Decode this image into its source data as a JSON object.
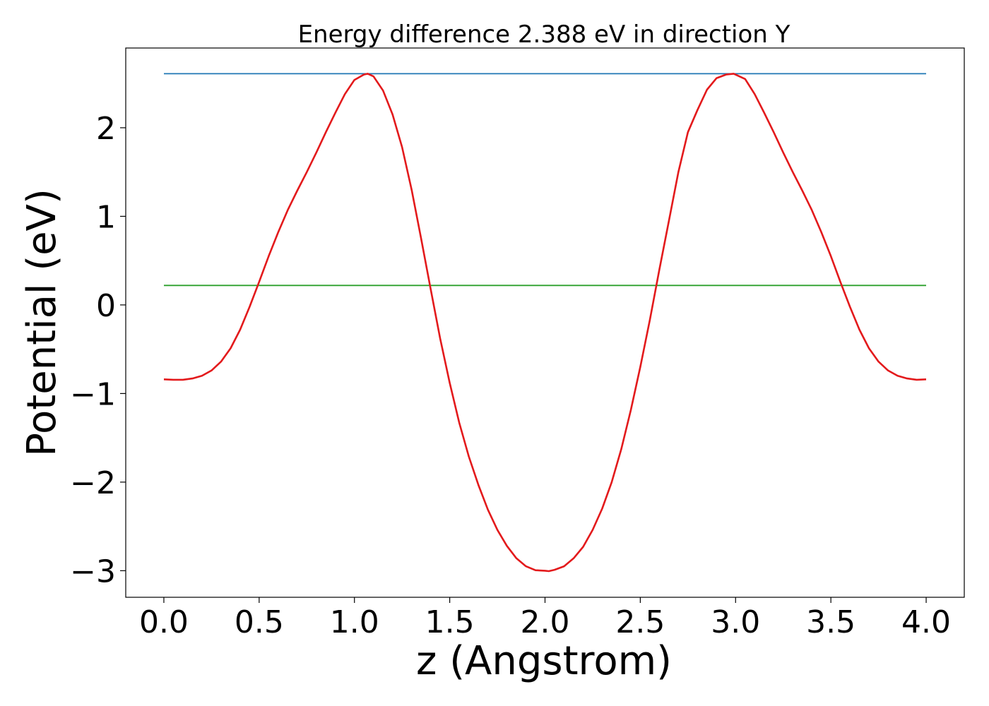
{
  "chart_data": {
    "type": "line",
    "title": "Energy difference 2.388 eV in direction Y",
    "xlabel": "z (Angstrom)",
    "ylabel": "Potential (eV)",
    "xlim": [
      -0.2,
      4.2
    ],
    "ylim": [
      -3.3,
      2.9
    ],
    "xticks": [
      0.0,
      0.5,
      1.0,
      1.5,
      2.0,
      2.5,
      3.0,
      3.5,
      4.0
    ],
    "xtick_labels": [
      "0.0",
      "0.5",
      "1.0",
      "1.5",
      "2.0",
      "2.5",
      "3.0",
      "3.5",
      "4.0"
    ],
    "yticks": [
      2,
      1,
      0,
      -1,
      -2,
      -3
    ],
    "ytick_labels": [
      "2",
      "1",
      "0",
      "−1",
      "−2",
      "−3"
    ],
    "grid": false,
    "series": [
      {
        "color": "#1f77b4",
        "x": [
          0.0,
          4.0
        ],
        "y": [
          2.61,
          2.61
        ]
      },
      {
        "color": "#2ca02c",
        "x": [
          0.0,
          4.0
        ],
        "y": [
          0.22,
          0.22
        ]
      },
      {
        "color": "#e31a1c",
        "x": [
          0.0,
          0.05,
          0.1,
          0.15,
          0.2,
          0.25,
          0.3,
          0.35,
          0.4,
          0.45,
          0.5,
          0.55,
          0.6,
          0.65,
          0.7,
          0.75,
          0.8,
          0.85,
          0.9,
          0.95,
          1.0,
          1.05,
          1.07,
          1.1,
          1.15,
          1.2,
          1.25,
          1.3,
          1.35,
          1.4,
          1.45,
          1.5,
          1.55,
          1.6,
          1.65,
          1.7,
          1.75,
          1.8,
          1.85,
          1.9,
          1.95,
          2.0,
          2.02,
          2.05,
          2.1,
          2.15,
          2.2,
          2.25,
          2.3,
          2.35,
          2.4,
          2.45,
          2.5,
          2.55,
          2.6,
          2.65,
          2.7,
          2.75,
          2.8,
          2.85,
          2.9,
          2.95,
          2.99,
          3.02,
          3.05,
          3.1,
          3.15,
          3.2,
          3.25,
          3.3,
          3.35,
          3.4,
          3.45,
          3.5,
          3.55,
          3.6,
          3.65,
          3.7,
          3.75,
          3.8,
          3.85,
          3.9,
          3.95,
          4.0
        ],
        "y": [
          -0.84,
          -0.845,
          -0.845,
          -0.83,
          -0.8,
          -0.74,
          -0.64,
          -0.49,
          -0.28,
          -0.02,
          0.26,
          0.55,
          0.82,
          1.07,
          1.29,
          1.5,
          1.72,
          1.95,
          2.17,
          2.38,
          2.54,
          2.6,
          2.61,
          2.58,
          2.42,
          2.15,
          1.78,
          1.3,
          0.75,
          0.18,
          -0.38,
          -0.88,
          -1.33,
          -1.71,
          -2.03,
          -2.31,
          -2.54,
          -2.72,
          -2.86,
          -2.95,
          -2.995,
          -3.0,
          -3.005,
          -2.99,
          -2.95,
          -2.86,
          -2.73,
          -2.54,
          -2.3,
          -2.0,
          -1.63,
          -1.19,
          -0.7,
          -0.17,
          0.4,
          0.95,
          1.5,
          1.95,
          2.2,
          2.43,
          2.56,
          2.6,
          2.61,
          2.58,
          2.55,
          2.38,
          2.17,
          1.95,
          1.72,
          1.5,
          1.29,
          1.07,
          0.82,
          0.55,
          0.26,
          -0.02,
          -0.28,
          -0.49,
          -0.64,
          -0.74,
          -0.8,
          -0.83,
          -0.845,
          -0.84
        ]
      }
    ]
  }
}
